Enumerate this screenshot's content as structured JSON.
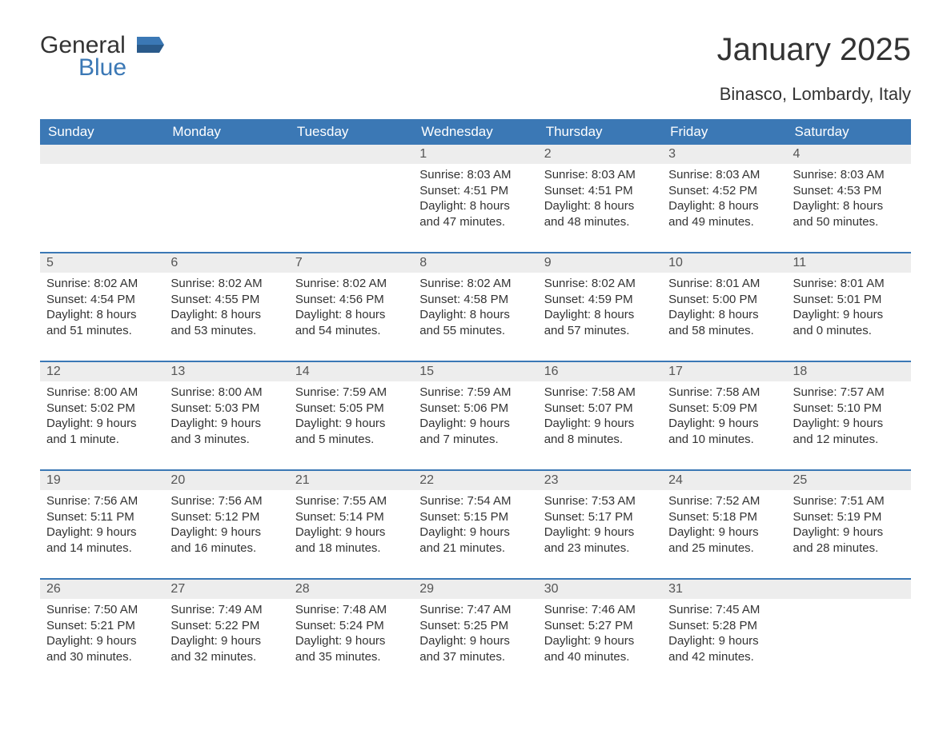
{
  "logo": {
    "general": "General",
    "blue": "Blue"
  },
  "title": "January 2025",
  "location": "Binasco, Lombardy, Italy",
  "colors": {
    "header_bg": "#3b78b5",
    "header_text": "#ffffff",
    "date_strip_bg": "#ededed",
    "date_strip_text": "#555555",
    "body_text": "#333333",
    "logo_blue": "#3b78b5",
    "page_bg": "#ffffff"
  },
  "font": {
    "family": "Arial",
    "title_size": 40,
    "location_size": 22,
    "header_size": 17,
    "body_size": 15
  },
  "day_headers": [
    "Sunday",
    "Monday",
    "Tuesday",
    "Wednesday",
    "Thursday",
    "Friday",
    "Saturday"
  ],
  "labels": {
    "sunrise": "Sunrise: ",
    "sunset": "Sunset: ",
    "daylight": "Daylight: "
  },
  "weeks": [
    [
      null,
      null,
      null,
      {
        "date": "1",
        "sunrise": "8:03 AM",
        "sunset": "4:51 PM",
        "daylight": "8 hours and 47 minutes."
      },
      {
        "date": "2",
        "sunrise": "8:03 AM",
        "sunset": "4:51 PM",
        "daylight": "8 hours and 48 minutes."
      },
      {
        "date": "3",
        "sunrise": "8:03 AM",
        "sunset": "4:52 PM",
        "daylight": "8 hours and 49 minutes."
      },
      {
        "date": "4",
        "sunrise": "8:03 AM",
        "sunset": "4:53 PM",
        "daylight": "8 hours and 50 minutes."
      }
    ],
    [
      {
        "date": "5",
        "sunrise": "8:02 AM",
        "sunset": "4:54 PM",
        "daylight": "8 hours and 51 minutes."
      },
      {
        "date": "6",
        "sunrise": "8:02 AM",
        "sunset": "4:55 PM",
        "daylight": "8 hours and 53 minutes."
      },
      {
        "date": "7",
        "sunrise": "8:02 AM",
        "sunset": "4:56 PM",
        "daylight": "8 hours and 54 minutes."
      },
      {
        "date": "8",
        "sunrise": "8:02 AM",
        "sunset": "4:58 PM",
        "daylight": "8 hours and 55 minutes."
      },
      {
        "date": "9",
        "sunrise": "8:02 AM",
        "sunset": "4:59 PM",
        "daylight": "8 hours and 57 minutes."
      },
      {
        "date": "10",
        "sunrise": "8:01 AM",
        "sunset": "5:00 PM",
        "daylight": "8 hours and 58 minutes."
      },
      {
        "date": "11",
        "sunrise": "8:01 AM",
        "sunset": "5:01 PM",
        "daylight": "9 hours and 0 minutes."
      }
    ],
    [
      {
        "date": "12",
        "sunrise": "8:00 AM",
        "sunset": "5:02 PM",
        "daylight": "9 hours and 1 minute."
      },
      {
        "date": "13",
        "sunrise": "8:00 AM",
        "sunset": "5:03 PM",
        "daylight": "9 hours and 3 minutes."
      },
      {
        "date": "14",
        "sunrise": "7:59 AM",
        "sunset": "5:05 PM",
        "daylight": "9 hours and 5 minutes."
      },
      {
        "date": "15",
        "sunrise": "7:59 AM",
        "sunset": "5:06 PM",
        "daylight": "9 hours and 7 minutes."
      },
      {
        "date": "16",
        "sunrise": "7:58 AM",
        "sunset": "5:07 PM",
        "daylight": "9 hours and 8 minutes."
      },
      {
        "date": "17",
        "sunrise": "7:58 AM",
        "sunset": "5:09 PM",
        "daylight": "9 hours and 10 minutes."
      },
      {
        "date": "18",
        "sunrise": "7:57 AM",
        "sunset": "5:10 PM",
        "daylight": "9 hours and 12 minutes."
      }
    ],
    [
      {
        "date": "19",
        "sunrise": "7:56 AM",
        "sunset": "5:11 PM",
        "daylight": "9 hours and 14 minutes."
      },
      {
        "date": "20",
        "sunrise": "7:56 AM",
        "sunset": "5:12 PM",
        "daylight": "9 hours and 16 minutes."
      },
      {
        "date": "21",
        "sunrise": "7:55 AM",
        "sunset": "5:14 PM",
        "daylight": "9 hours and 18 minutes."
      },
      {
        "date": "22",
        "sunrise": "7:54 AM",
        "sunset": "5:15 PM",
        "daylight": "9 hours and 21 minutes."
      },
      {
        "date": "23",
        "sunrise": "7:53 AM",
        "sunset": "5:17 PM",
        "daylight": "9 hours and 23 minutes."
      },
      {
        "date": "24",
        "sunrise": "7:52 AM",
        "sunset": "5:18 PM",
        "daylight": "9 hours and 25 minutes."
      },
      {
        "date": "25",
        "sunrise": "7:51 AM",
        "sunset": "5:19 PM",
        "daylight": "9 hours and 28 minutes."
      }
    ],
    [
      {
        "date": "26",
        "sunrise": "7:50 AM",
        "sunset": "5:21 PM",
        "daylight": "9 hours and 30 minutes."
      },
      {
        "date": "27",
        "sunrise": "7:49 AM",
        "sunset": "5:22 PM",
        "daylight": "9 hours and 32 minutes."
      },
      {
        "date": "28",
        "sunrise": "7:48 AM",
        "sunset": "5:24 PM",
        "daylight": "9 hours and 35 minutes."
      },
      {
        "date": "29",
        "sunrise": "7:47 AM",
        "sunset": "5:25 PM",
        "daylight": "9 hours and 37 minutes."
      },
      {
        "date": "30",
        "sunrise": "7:46 AM",
        "sunset": "5:27 PM",
        "daylight": "9 hours and 40 minutes."
      },
      {
        "date": "31",
        "sunrise": "7:45 AM",
        "sunset": "5:28 PM",
        "daylight": "9 hours and 42 minutes."
      },
      null
    ]
  ]
}
